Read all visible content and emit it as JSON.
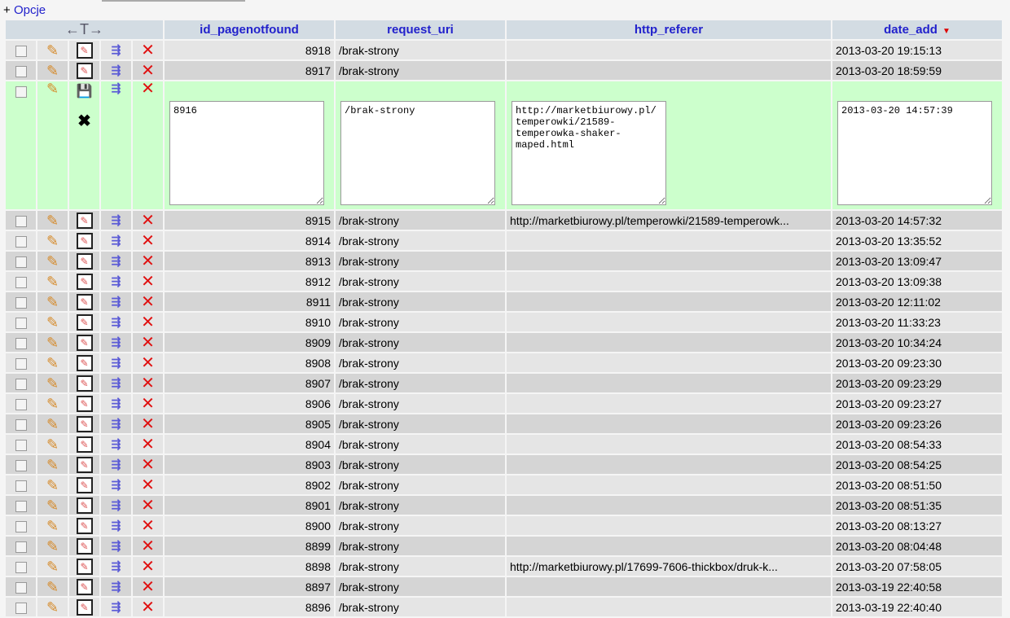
{
  "options_label": "+ Opcje",
  "options_link": "Opcje",
  "header": {
    "arrows": "←T→",
    "columns": [
      "id_pagenotfound",
      "request_uri",
      "http_referer",
      "date_add"
    ],
    "sort_column": "date_add",
    "sort_dir": "desc"
  },
  "rows_before": [
    {
      "id": "8918",
      "uri": "/brak-strony",
      "ref": "",
      "date": "2013-03-20 19:15:13"
    },
    {
      "id": "8917",
      "uri": "/brak-strony",
      "ref": "",
      "date": "2013-03-20 18:59:59"
    }
  ],
  "edit_row": {
    "id": "8916",
    "uri": "/brak-strony",
    "ref": "http://marketbiurowy.pl/temperowki/21589-temperowka-shaker-maped.html",
    "date": "2013-03-20 14:57:39"
  },
  "rows_after": [
    {
      "id": "8915",
      "uri": "/brak-strony",
      "ref": "http://marketbiurowy.pl/temperowki/21589-temperowk...",
      "date": "2013-03-20 14:57:32"
    },
    {
      "id": "8914",
      "uri": "/brak-strony",
      "ref": "",
      "date": "2013-03-20 13:35:52"
    },
    {
      "id": "8913",
      "uri": "/brak-strony",
      "ref": "",
      "date": "2013-03-20 13:09:47"
    },
    {
      "id": "8912",
      "uri": "/brak-strony",
      "ref": "",
      "date": "2013-03-20 13:09:38"
    },
    {
      "id": "8911",
      "uri": "/brak-strony",
      "ref": "",
      "date": "2013-03-20 12:11:02"
    },
    {
      "id": "8910",
      "uri": "/brak-strony",
      "ref": "",
      "date": "2013-03-20 11:33:23"
    },
    {
      "id": "8909",
      "uri": "/brak-strony",
      "ref": "",
      "date": "2013-03-20 10:34:24"
    },
    {
      "id": "8908",
      "uri": "/brak-strony",
      "ref": "",
      "date": "2013-03-20 09:23:30"
    },
    {
      "id": "8907",
      "uri": "/brak-strony",
      "ref": "",
      "date": "2013-03-20 09:23:29"
    },
    {
      "id": "8906",
      "uri": "/brak-strony",
      "ref": "",
      "date": "2013-03-20 09:23:27"
    },
    {
      "id": "8905",
      "uri": "/brak-strony",
      "ref": "",
      "date": "2013-03-20 09:23:26"
    },
    {
      "id": "8904",
      "uri": "/brak-strony",
      "ref": "",
      "date": "2013-03-20 08:54:33"
    },
    {
      "id": "8903",
      "uri": "/brak-strony",
      "ref": "",
      "date": "2013-03-20 08:54:25"
    },
    {
      "id": "8902",
      "uri": "/brak-strony",
      "ref": "",
      "date": "2013-03-20 08:51:50"
    },
    {
      "id": "8901",
      "uri": "/brak-strony",
      "ref": "",
      "date": "2013-03-20 08:51:35"
    },
    {
      "id": "8900",
      "uri": "/brak-strony",
      "ref": "",
      "date": "2013-03-20 08:13:27"
    },
    {
      "id": "8899",
      "uri": "/brak-strony",
      "ref": "",
      "date": "2013-03-20 08:04:48"
    },
    {
      "id": "8898",
      "uri": "/brak-strony",
      "ref": "http://marketbiurowy.pl/17699-7606-thickbox/druk-k...",
      "date": "2013-03-20 07:58:05"
    },
    {
      "id": "8897",
      "uri": "/brak-strony",
      "ref": "",
      "date": "2013-03-19 22:40:58"
    },
    {
      "id": "8896",
      "uri": "/brak-strony",
      "ref": "",
      "date": "2013-03-19 22:40:40"
    }
  ]
}
